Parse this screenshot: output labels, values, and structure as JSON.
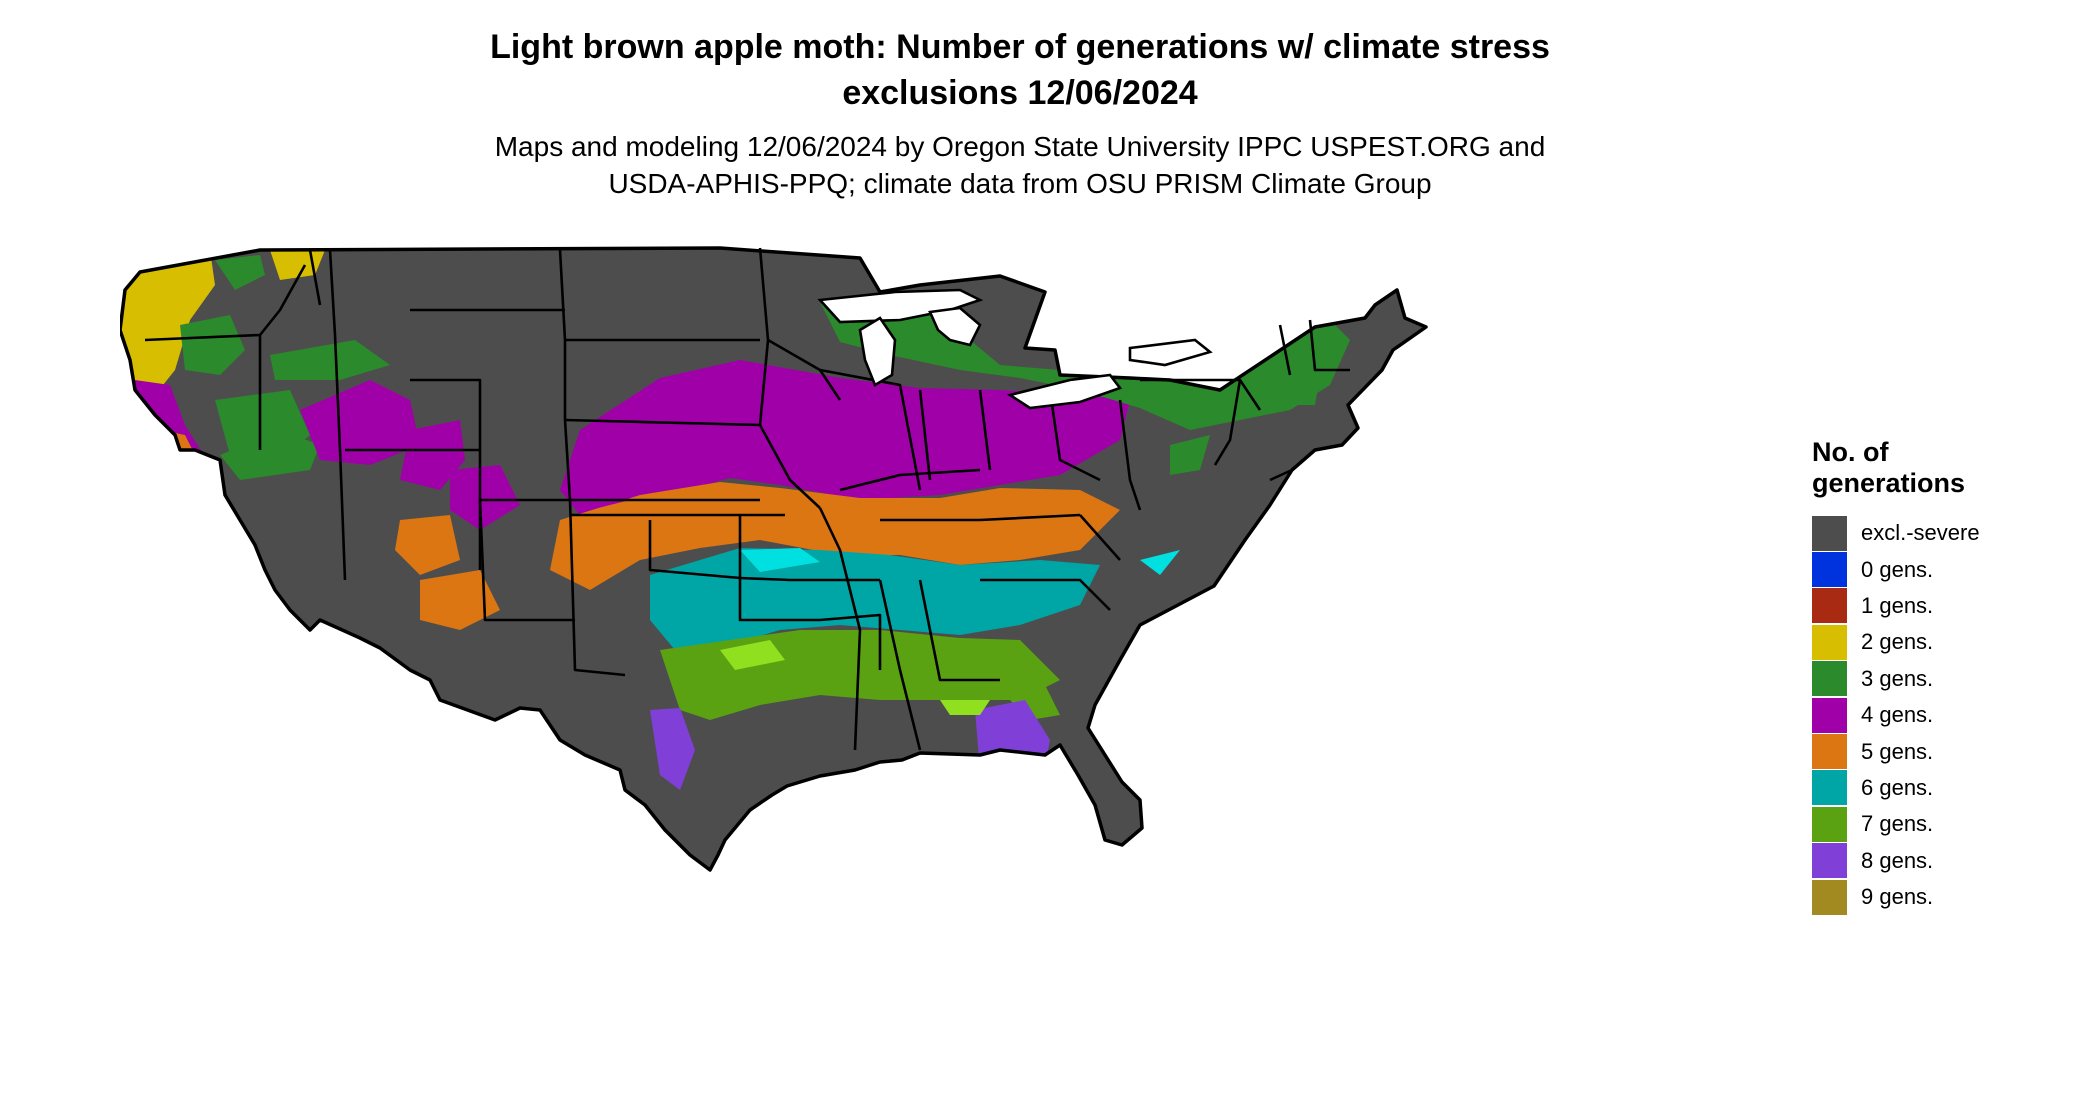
{
  "map": {
    "title_line1": "Light brown apple moth: Number of generations w/ climate stress",
    "title_line2": "exclusions 12/06/2024",
    "subtitle_line1": "Maps and modeling 12/06/2024 by Oregon State University IPPC USPEST.ORG and",
    "subtitle_line2": "USDA-APHIS-PPQ; climate data from OSU PRISM Climate Group"
  },
  "legend": {
    "title_line1": "No. of",
    "title_line2": "generations",
    "items": [
      {
        "label": "excl.-severe",
        "color": "#4d4d4d"
      },
      {
        "label": "0 gens.",
        "color": "#0033dd"
      },
      {
        "label": "1 gens.",
        "color": "#a82a12"
      },
      {
        "label": "2 gens.",
        "color": "#d8be00"
      },
      {
        "label": "3 gens.",
        "color": "#2b8a2b"
      },
      {
        "label": "4 gens.",
        "color": "#a000a8"
      },
      {
        "label": "5 gens.",
        "color": "#dc7612"
      },
      {
        "label": "6 gens.",
        "color": "#00a5a5"
      },
      {
        "label": "7 gens.",
        "color": "#5aa212"
      },
      {
        "label": "8 gens.",
        "color": "#8040d8"
      },
      {
        "label": "9 gens.",
        "color": "#a28a20"
      }
    ]
  }
}
